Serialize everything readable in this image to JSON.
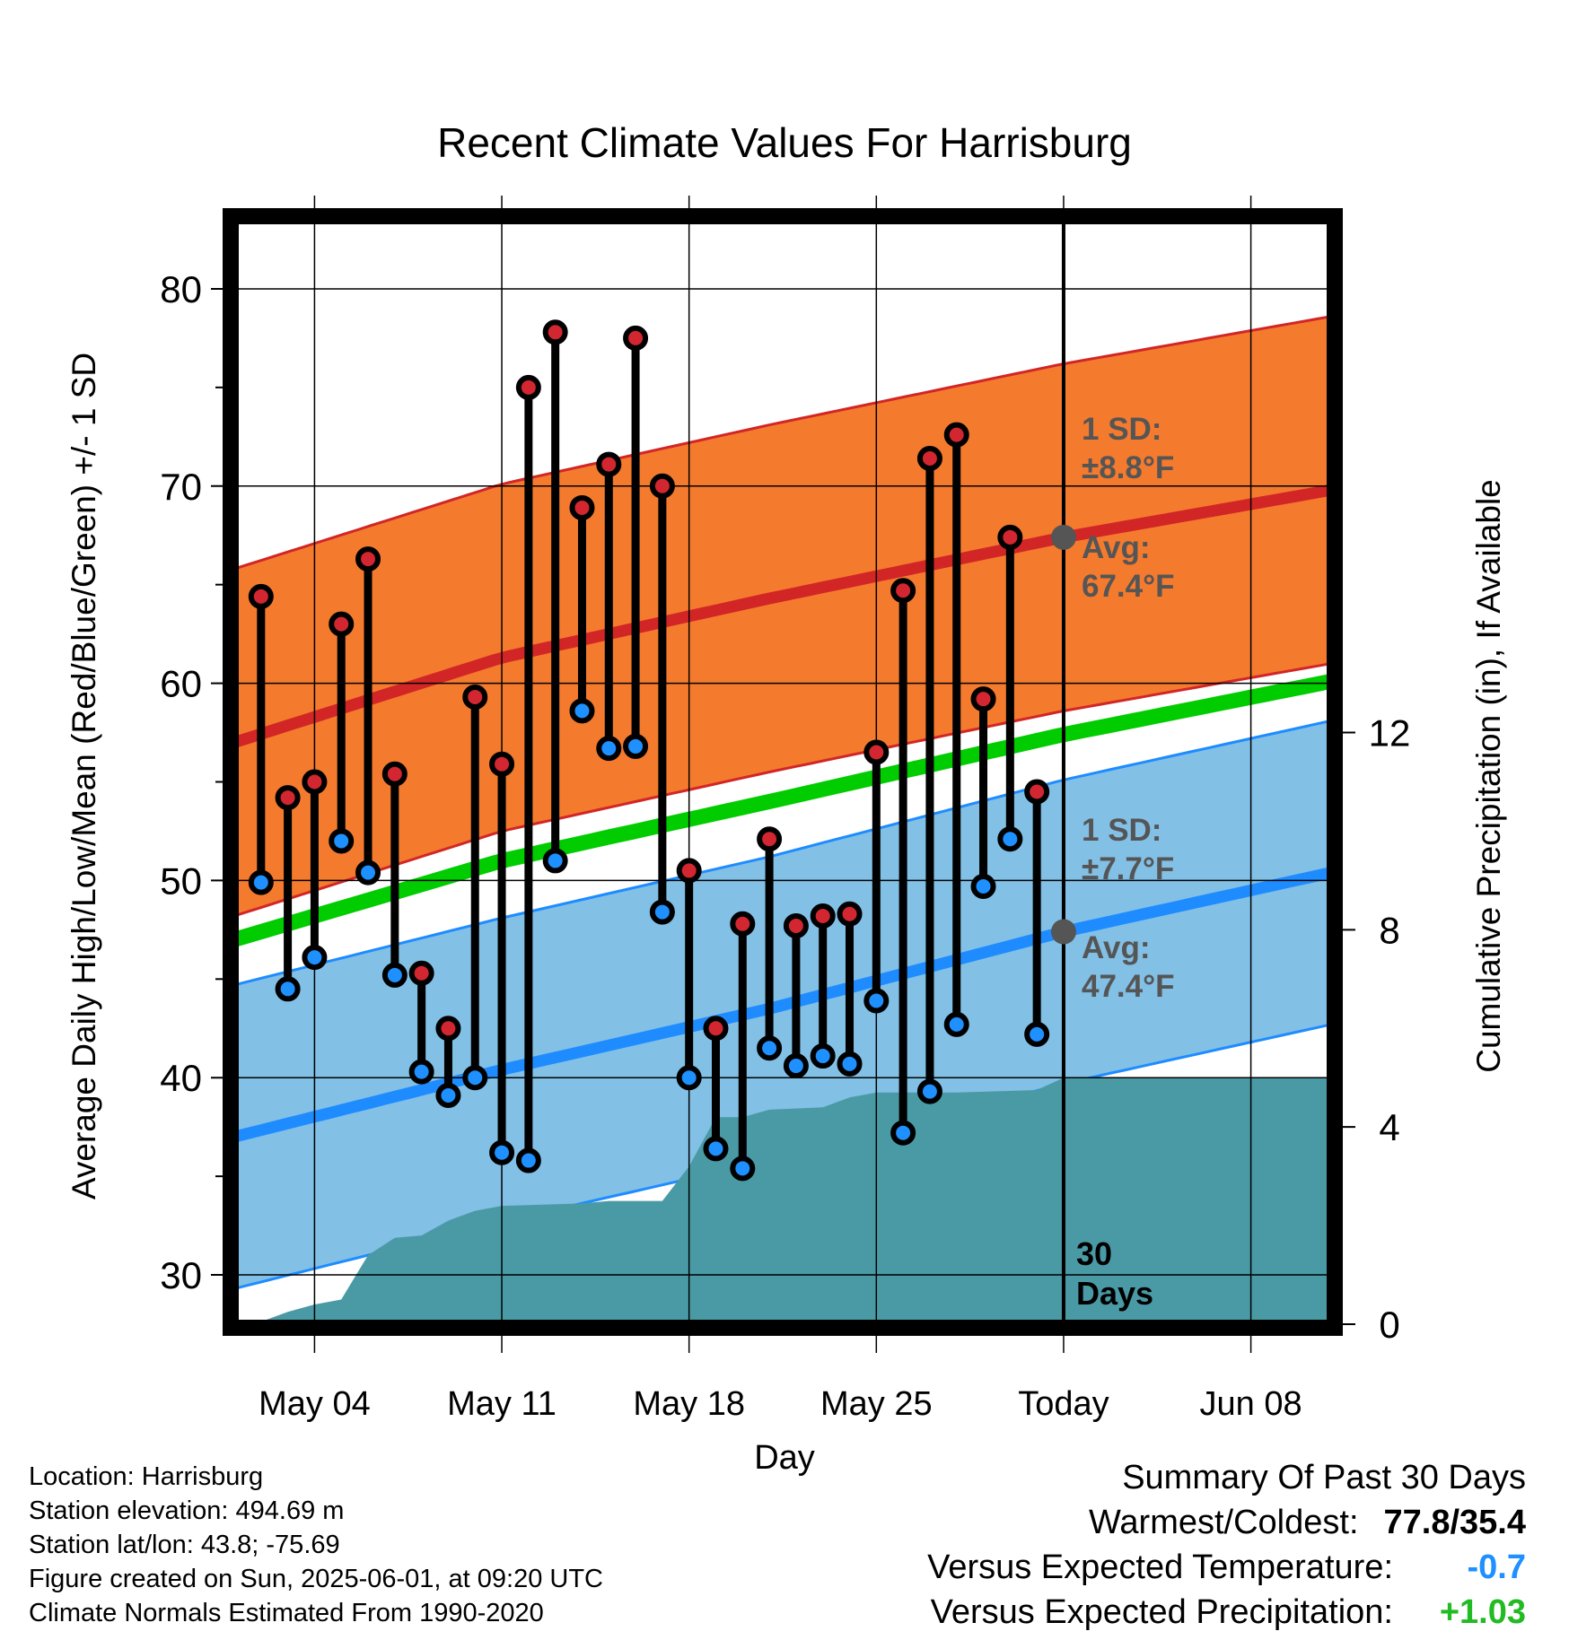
{
  "chart_data": {
    "type": "line",
    "title": "Recent Climate Values For Harrisburg",
    "xlabel": "Day",
    "ylabel": "Average Daily High/Low/Mean (Red/Blue/Green) +/- 1 SD",
    "y2label": "Cumulative Precipitation (in), If Available",
    "x_ticks": [
      "May 04",
      "May 11",
      "May 18",
      "May 25",
      "Today",
      "Jun 08"
    ],
    "x_range": [
      "2025-05-01",
      "2025-06-11"
    ],
    "ylim": [
      27.5,
      83.5
    ],
    "y_ticks": [
      30,
      40,
      50,
      60,
      70,
      80
    ],
    "y2lim": [
      0,
      22.4
    ],
    "y2_ticks": [
      0,
      4,
      8,
      12
    ],
    "grid": true,
    "today": "2025-06-01",
    "daily": [
      {
        "date": "2025-05-02",
        "high": 64.4,
        "low": 49.9
      },
      {
        "date": "2025-05-03",
        "high": 54.2,
        "low": 44.5
      },
      {
        "date": "2025-05-04",
        "high": 55.0,
        "low": 46.1
      },
      {
        "date": "2025-05-05",
        "high": 63.0,
        "low": 52.0
      },
      {
        "date": "2025-05-06",
        "high": 66.3,
        "low": 50.4
      },
      {
        "date": "2025-05-07",
        "high": 55.4,
        "low": 45.2
      },
      {
        "date": "2025-05-08",
        "high": 45.3,
        "low": 40.3
      },
      {
        "date": "2025-05-09",
        "high": 42.5,
        "low": 39.1
      },
      {
        "date": "2025-05-10",
        "high": 59.3,
        "low": 40.0
      },
      {
        "date": "2025-05-11",
        "high": 55.9,
        "low": 36.2
      },
      {
        "date": "2025-05-12",
        "high": 75.0,
        "low": 35.8
      },
      {
        "date": "2025-05-13",
        "high": 77.8,
        "low": 51.0
      },
      {
        "date": "2025-05-14",
        "high": 68.9,
        "low": 58.6
      },
      {
        "date": "2025-05-15",
        "high": 71.1,
        "low": 56.7
      },
      {
        "date": "2025-05-16",
        "high": 77.5,
        "low": 56.8
      },
      {
        "date": "2025-05-17",
        "high": 70.0,
        "low": 48.4
      },
      {
        "date": "2025-05-18",
        "high": 50.5,
        "low": 40.0
      },
      {
        "date": "2025-05-19",
        "high": 42.5,
        "low": 36.4
      },
      {
        "date": "2025-05-20",
        "high": 47.8,
        "low": 35.4
      },
      {
        "date": "2025-05-21",
        "high": 52.1,
        "low": 41.5
      },
      {
        "date": "2025-05-22",
        "high": 47.7,
        "low": 40.6
      },
      {
        "date": "2025-05-23",
        "high": 48.2,
        "low": 41.1
      },
      {
        "date": "2025-05-24",
        "high": 48.3,
        "low": 40.7
      },
      {
        "date": "2025-05-25",
        "high": 56.5,
        "low": 43.9
      },
      {
        "date": "2025-05-26",
        "high": 64.7,
        "low": 37.2
      },
      {
        "date": "2025-05-27",
        "high": 71.4,
        "low": 39.3
      },
      {
        "date": "2025-05-28",
        "high": 72.6,
        "low": 42.7
      },
      {
        "date": "2025-05-29",
        "high": 59.2,
        "low": 49.7
      },
      {
        "date": "2025-05-30",
        "high": 67.4,
        "low": 52.1
      },
      {
        "date": "2025-05-31",
        "high": 54.5,
        "low": 42.2
      }
    ],
    "normals": {
      "dates": [
        "2025-05-01",
        "2025-05-11",
        "2025-05-21",
        "2025-06-01",
        "2025-06-11"
      ],
      "high_avg": [
        57.0,
        61.3,
        64.3,
        67.4,
        69.8
      ],
      "high_sd": 8.8,
      "low_avg": [
        37.0,
        40.4,
        43.5,
        47.4,
        50.4
      ],
      "low_sd": 7.7,
      "mean_avg": [
        47.0,
        51.0,
        54.0,
        57.4,
        60.1
      ]
    },
    "precip_cumulative": [
      {
        "date": "2025-05-01",
        "value": 0.0
      },
      {
        "date": "2025-05-02",
        "value": 0.05
      },
      {
        "date": "2025-05-03",
        "value": 0.25
      },
      {
        "date": "2025-05-04",
        "value": 0.4
      },
      {
        "date": "2025-05-05",
        "value": 0.5
      },
      {
        "date": "2025-05-06",
        "value": 1.4
      },
      {
        "date": "2025-05-07",
        "value": 1.75
      },
      {
        "date": "2025-05-08",
        "value": 1.8
      },
      {
        "date": "2025-05-09",
        "value": 2.1
      },
      {
        "date": "2025-05-10",
        "value": 2.3
      },
      {
        "date": "2025-05-11",
        "value": 2.4
      },
      {
        "date": "2025-05-14",
        "value": 2.45
      },
      {
        "date": "2025-05-15",
        "value": 2.5
      },
      {
        "date": "2025-05-17",
        "value": 2.5
      },
      {
        "date": "2025-05-18",
        "value": 3.2
      },
      {
        "date": "2025-05-19",
        "value": 4.2
      },
      {
        "date": "2025-05-20",
        "value": 4.2
      },
      {
        "date": "2025-05-21",
        "value": 4.35
      },
      {
        "date": "2025-05-23",
        "value": 4.4
      },
      {
        "date": "2025-05-24",
        "value": 4.6
      },
      {
        "date": "2025-05-25",
        "value": 4.7
      },
      {
        "date": "2025-05-28",
        "value": 4.7
      },
      {
        "date": "2025-05-31",
        "value": 4.75
      },
      {
        "date": "2025-06-01",
        "value": 5.0
      },
      {
        "date": "2025-06-11",
        "value": 5.0
      }
    ],
    "annotations": {
      "high_sd_label": "1 SD:",
      "high_sd_value": "±8.8°F",
      "high_avg_label": "Avg:",
      "high_avg_value": "67.4°F",
      "low_sd_label": "1 SD:",
      "low_sd_value": "±7.7°F",
      "low_avg_label": "Avg:",
      "low_avg_value": "47.4°F",
      "days_line1": "30",
      "days_line2": "Days"
    },
    "colors": {
      "high_band": "#f47a2e",
      "high_line": "#d22626",
      "low_band": "#82c0e6",
      "low_line": "#1e8cff",
      "mean_line": "#00cc00",
      "precip": "#4a9aa6",
      "high_marker": "#d22630",
      "low_marker": "#1e90ff",
      "annotation": "#555555"
    }
  },
  "info": {
    "location": "Location: Harrisburg",
    "elevation": "Station elevation: 494.69 m",
    "latlon": "Station lat/lon: 43.8; -75.69",
    "created": "Figure created on Sun, 2025-06-01, at 09:20 UTC",
    "normals": "Climate Normals Estimated From 1990-2020"
  },
  "summary": {
    "title": "Summary Of Past 30 Days",
    "warmest_label": "Warmest/Coldest:",
    "warmest_value": "77.8/35.4",
    "temp_label": "Versus Expected Temperature:",
    "temp_value": "-0.7",
    "temp_color": "#1e90ff",
    "precip_label": "Versus Expected Precipitation:",
    "precip_value": "+1.03",
    "precip_color": "#22bb22"
  }
}
